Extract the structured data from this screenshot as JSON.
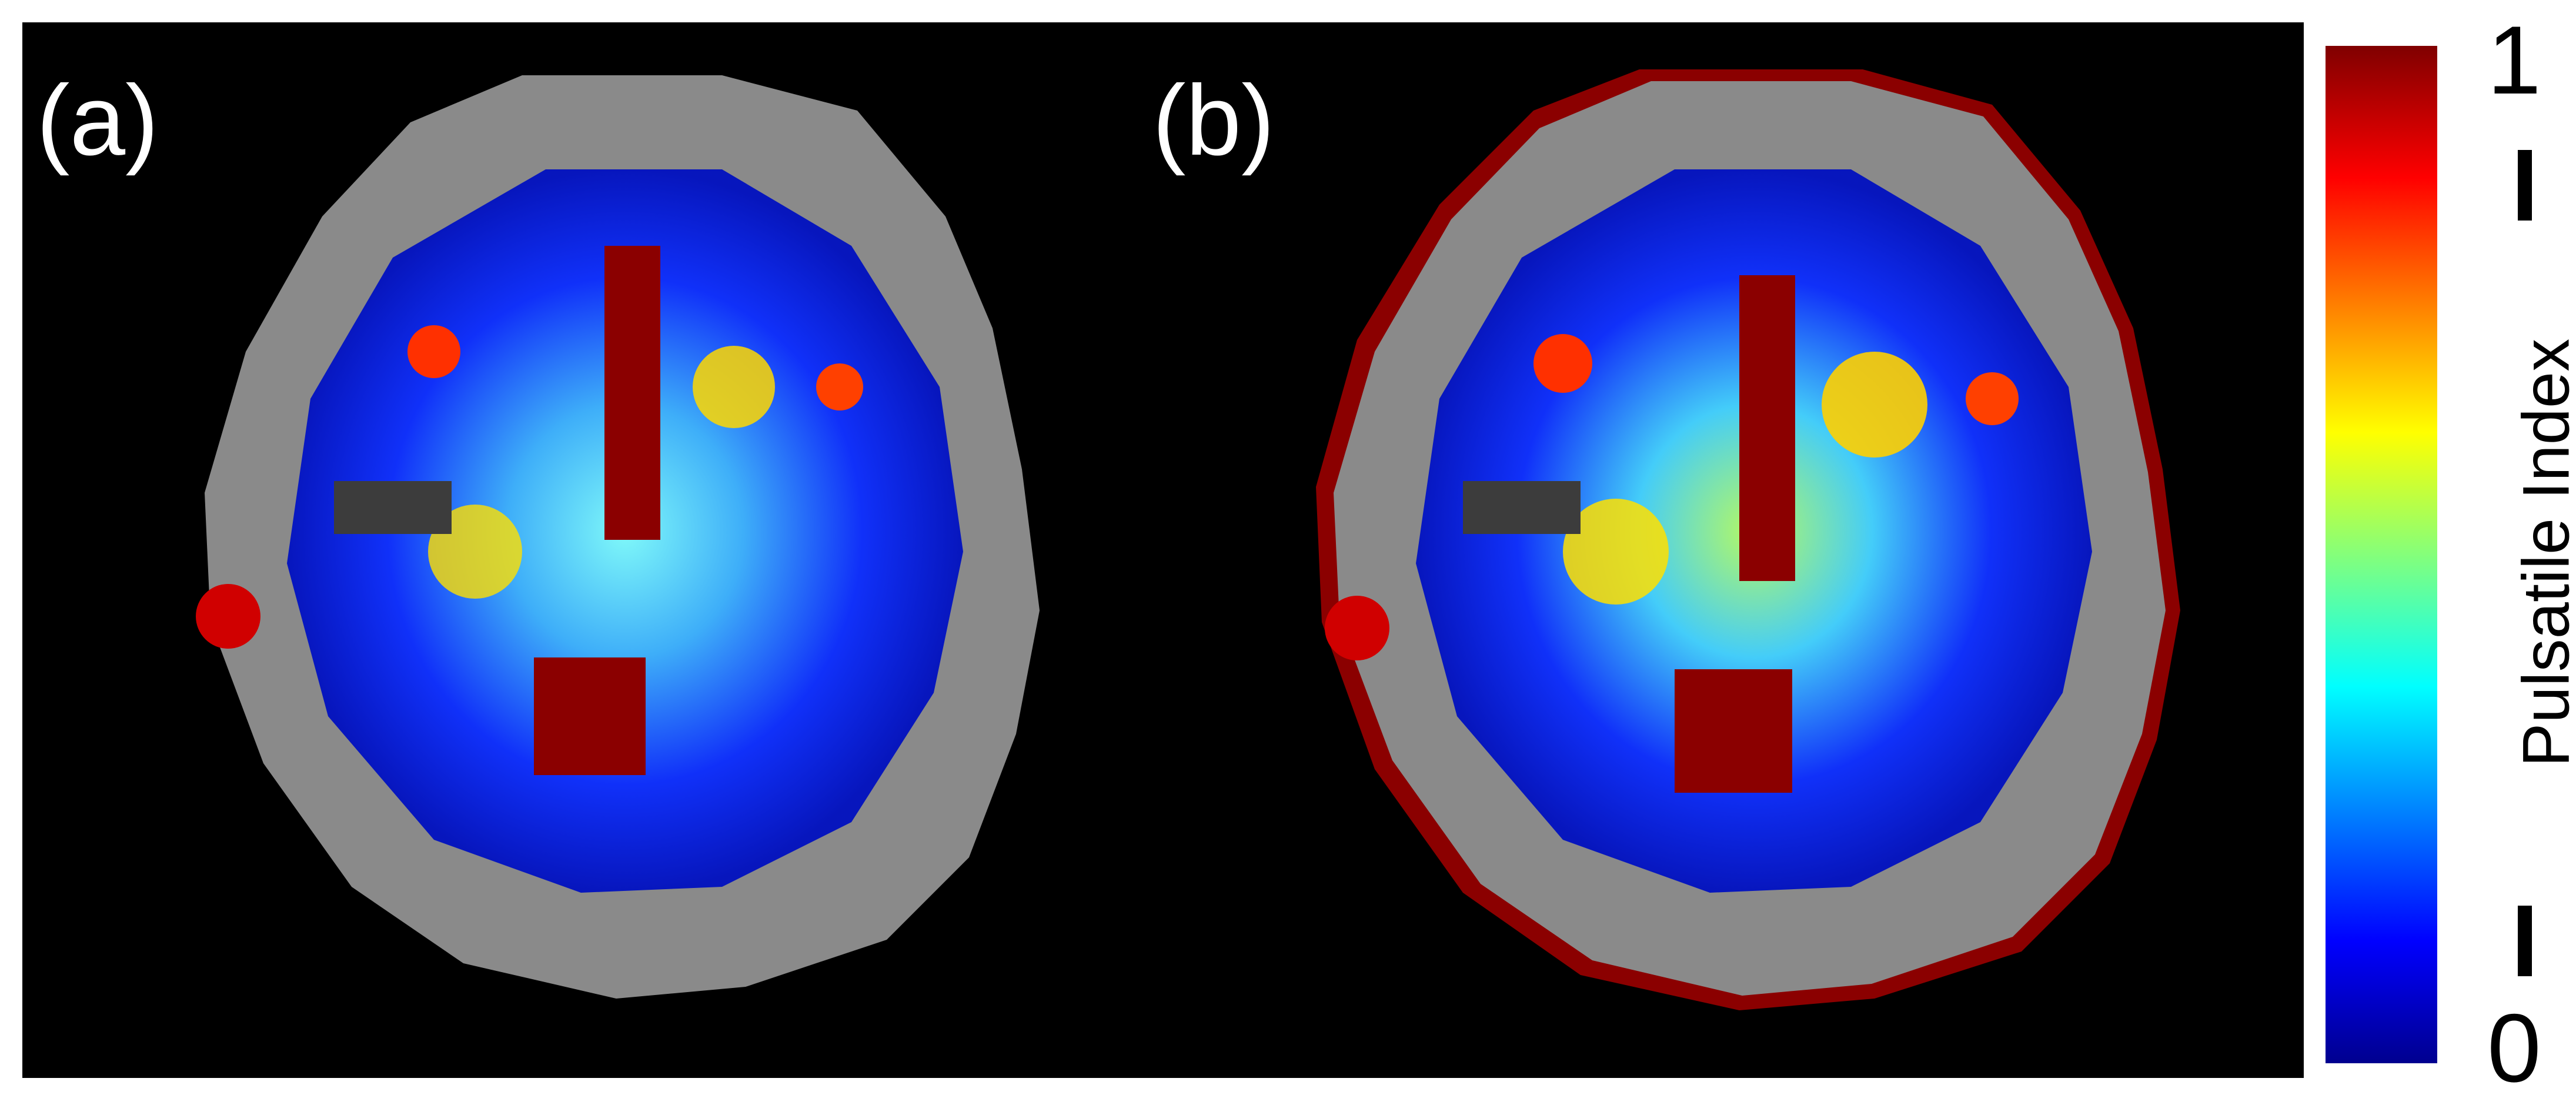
{
  "panels": [
    {
      "label": "(a)"
    },
    {
      "label": "(b)"
    }
  ],
  "colorbar": {
    "title": "Pulsatile Index",
    "max_label": "1",
    "min_label": "0",
    "colormap": "jet",
    "range": [
      0,
      1
    ]
  },
  "colors": {
    "background": "#000000",
    "text_on_image": "#ffffff",
    "jet_stops": [
      "#00008f",
      "#0000ff",
      "#00ffff",
      "#ffff00",
      "#ff0000",
      "#800000"
    ]
  }
}
